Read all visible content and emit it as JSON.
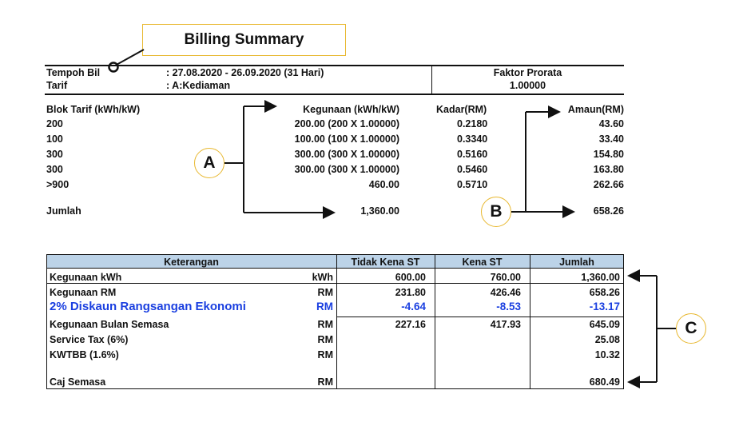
{
  "title": "Billing Summary",
  "info": {
    "tempoh_label": "Tempoh Bil",
    "tempoh_value": ": 27.08.2020 - 26.09.2020 (31 Hari)",
    "tarif_label": "Tarif",
    "tarif_value": ": A:Kediaman",
    "faktor_label": "Faktor Prorata",
    "faktor_value": "1.00000"
  },
  "tariff": {
    "headers": {
      "blok": "Blok Tarif (kWh/kW)",
      "kegunaan": "Kegunaan (kWh/kW)",
      "kadar": "Kadar(RM)",
      "amaun": "Amaun(RM)"
    },
    "rows": [
      {
        "blok": "200",
        "kegunaan": "200.00  (200 X 1.00000)",
        "kadar": "0.2180",
        "amaun": "43.60"
      },
      {
        "blok": "100",
        "kegunaan": "100.00  (100 X 1.00000)",
        "kadar": "0.3340",
        "amaun": "33.40"
      },
      {
        "blok": "300",
        "kegunaan": "300.00  (300 X 1.00000)",
        "kadar": "0.5160",
        "amaun": "154.80"
      },
      {
        "blok": "300",
        "kegunaan": "300.00  (300 X 1.00000)",
        "kadar": "0.5460",
        "amaun": "163.80"
      },
      {
        "blok": ">900",
        "kegunaan": "460.00",
        "kadar": "0.5710",
        "amaun": "262.66"
      }
    ],
    "jumlah_label": "Jumlah",
    "jumlah_kegunaan": "1,360.00",
    "jumlah_amaun": "658.26"
  },
  "callouts": {
    "a": "A",
    "b": "B",
    "c": "C"
  },
  "summary": {
    "headers": {
      "keterangan": "Keterangan",
      "tidak_kena": "Tidak Kena ST",
      "kena": "Kena ST",
      "jumlah": "Jumlah"
    },
    "rows": [
      {
        "label": "Kegunaan kWh",
        "unit": "kWh",
        "tidak_kena": "600.00",
        "kena": "760.00",
        "jumlah": "1,360.00"
      },
      {
        "label": "Kegunaan RM",
        "unit": "RM",
        "tidak_kena": "231.80",
        "kena": "426.46",
        "jumlah": "658.26"
      },
      {
        "label": "2% Diskaun Rangsangan Ekonomi",
        "unit": "RM",
        "tidak_kena": "-4.64",
        "kena": "-8.53",
        "jumlah": "-13.17"
      },
      {
        "label": "Kegunaan Bulan Semasa",
        "unit": "RM",
        "tidak_kena": "227.16",
        "kena": "417.93",
        "jumlah": "645.09"
      },
      {
        "label": "Service Tax (6%)",
        "unit": "RM",
        "tidak_kena": "",
        "kena": "",
        "jumlah": "25.08"
      },
      {
        "label": "KWTBB (1.6%)",
        "unit": "RM",
        "tidak_kena": "",
        "kena": "",
        "jumlah": "10.32"
      },
      {
        "label": "Caj Semasa",
        "unit": "RM",
        "tidak_kena": "",
        "kena": "",
        "jumlah": "680.49"
      }
    ]
  },
  "colors": {
    "accent_border": "#e8b830",
    "header_fill": "#bcd3e8",
    "discount_text": "#1a3fe0"
  }
}
